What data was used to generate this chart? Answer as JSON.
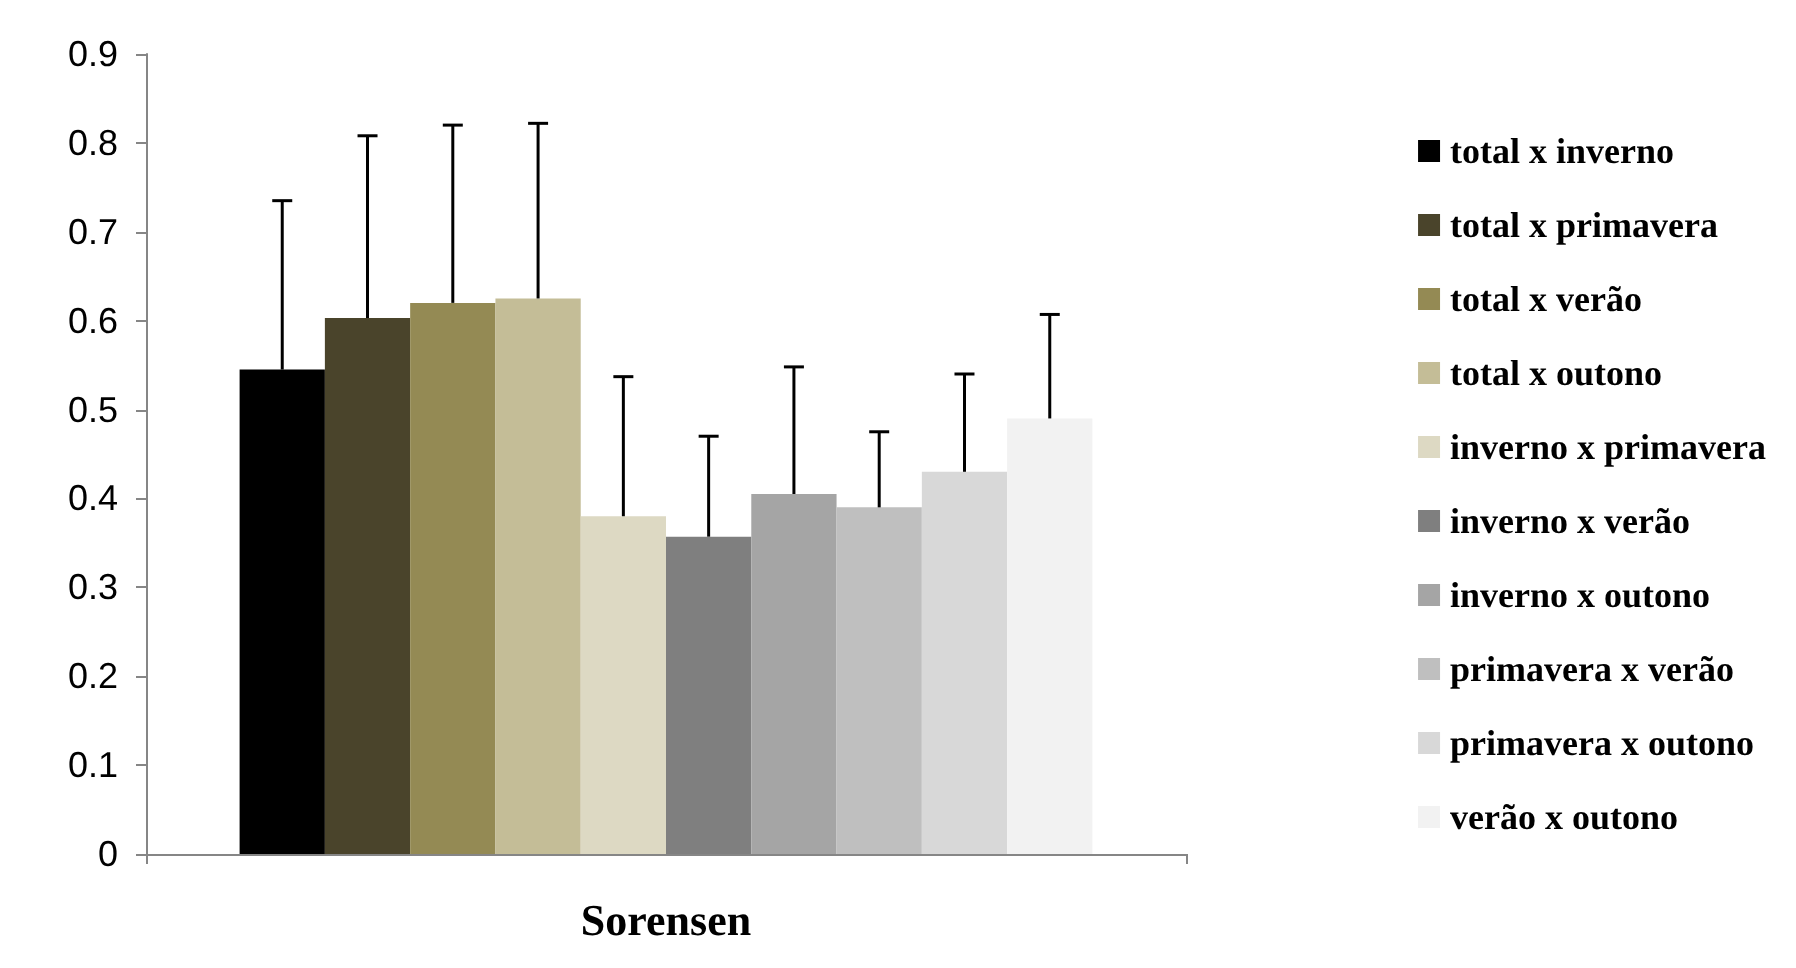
{
  "chart_data": {
    "type": "bar",
    "categories": [
      "Sorensen"
    ],
    "ylim": [
      0,
      0.9
    ],
    "yticks": [
      0,
      0.1,
      0.2,
      0.3,
      0.4,
      0.5,
      0.6,
      0.7,
      0.8,
      0.9
    ],
    "grid": false,
    "legend": "right",
    "series": [
      {
        "name": "total x inverno",
        "color": "#000000",
        "values": [
          0.545
        ],
        "errors": [
          [
            0.545,
            0.735
          ]
        ]
      },
      {
        "name": "total x primavera",
        "color": "#4a442b",
        "values": [
          0.603
        ],
        "errors": [
          [
            0.603,
            0.808
          ]
        ]
      },
      {
        "name": "total x verão",
        "color": "#948a54",
        "values": [
          0.62
        ],
        "errors": [
          [
            0.62,
            0.82
          ]
        ]
      },
      {
        "name": "total x outono",
        "color": "#c4bd97",
        "values": [
          0.625
        ],
        "errors": [
          [
            0.625,
            0.822
          ]
        ]
      },
      {
        "name": "inverno x primavera",
        "color": "#ddd9c3",
        "values": [
          0.38
        ],
        "errors": [
          [
            0.38,
            0.537
          ]
        ]
      },
      {
        "name": "inverno x verão",
        "color": "#7f7f7f",
        "values": [
          0.357
        ],
        "errors": [
          [
            0.357,
            0.47
          ]
        ]
      },
      {
        "name": "inverno x outono",
        "color": "#a5a5a5",
        "values": [
          0.405
        ],
        "errors": [
          [
            0.405,
            0.548
          ]
        ]
      },
      {
        "name": "primavera x verão",
        "color": "#bfbfbf",
        "values": [
          0.39
        ],
        "errors": [
          [
            0.39,
            0.475
          ]
        ]
      },
      {
        "name": "primavera x outono",
        "color": "#d8d8d8",
        "values": [
          0.43
        ],
        "errors": [
          [
            0.43,
            0.54
          ]
        ]
      },
      {
        "name": "verão x outono",
        "color": "#f2f2f2",
        "values": [
          0.49
        ],
        "errors": [
          [
            0.49,
            0.607
          ]
        ]
      }
    ]
  }
}
